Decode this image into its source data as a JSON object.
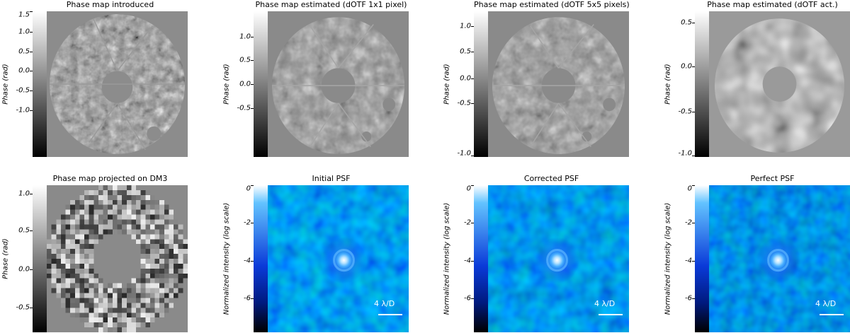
{
  "panels": [
    {
      "title": "Phase map introduced",
      "ylabel": "Phase (rad)",
      "cmap": "gray",
      "ticks": [
        {
          "label": "1.5",
          "frac": 0.0
        },
        {
          "label": "1.0",
          "frac": 0.14
        },
        {
          "label": "0.5",
          "frac": 0.275
        },
        {
          "label": "0.0",
          "frac": 0.41
        },
        {
          "label": "-0.5",
          "frac": 0.545
        },
        {
          "label": "-1.0",
          "frac": 0.68
        }
      ]
    },
    {
      "title": "Phase map estimated (dOTF 1x1 pixel)",
      "ylabel": "Phase (rad)",
      "cmap": "gray",
      "ticks": [
        {
          "label": "1.0",
          "frac": 0.175
        },
        {
          "label": "0.5",
          "frac": 0.335
        },
        {
          "label": "0.0",
          "frac": 0.5
        },
        {
          "label": "-0.5",
          "frac": 0.665
        }
      ]
    },
    {
      "title": "Phase map estimated (dOTF 5x5 pixels)",
      "ylabel": "Phase (rad)",
      "cmap": "gray",
      "ticks": [
        {
          "label": "1.0",
          "frac": 0.1
        },
        {
          "label": "0.5",
          "frac": 0.275
        },
        {
          "label": "0.0",
          "frac": 0.46
        },
        {
          "label": "-0.5",
          "frac": 0.63
        },
        {
          "label": "-1.0",
          "frac": 0.99
        }
      ]
    },
    {
      "title": "Phase map estimated (dOTF act.)",
      "ylabel": "Phase (rad)",
      "cmap": "gray",
      "ticks": [
        {
          "label": "0.5",
          "frac": 0.08
        },
        {
          "label": "0.0",
          "frac": 0.38
        },
        {
          "label": "-0.5",
          "frac": 0.69
        },
        {
          "label": "-1.0",
          "frac": 0.99
        }
      ]
    },
    {
      "title": "Phase map projected on DM3",
      "ylabel": "Phase (rad)",
      "cmap": "gray",
      "ticks": [
        {
          "label": "1.0",
          "frac": 0.06
        },
        {
          "label": "0.5",
          "frac": 0.31
        },
        {
          "label": "0.0",
          "frac": 0.57
        },
        {
          "label": "-0.5",
          "frac": 0.83
        }
      ]
    },
    {
      "title": "Initial PSF",
      "ylabel": "Normalized intensity (log scale)",
      "cmap": "blue",
      "scale": "4 λ/D",
      "ticks": [
        {
          "label": "0",
          "frac": 0.0
        },
        {
          "label": "-2",
          "frac": 0.257
        },
        {
          "label": "-4",
          "frac": 0.514
        },
        {
          "label": "-6",
          "frac": 0.771
        }
      ]
    },
    {
      "title": "Corrected PSF",
      "ylabel": "Normalized intensity (log scale)",
      "cmap": "blue",
      "scale": "4 λ/D",
      "ticks": [
        {
          "label": "0",
          "frac": 0.0
        },
        {
          "label": "-2",
          "frac": 0.257
        },
        {
          "label": "-4",
          "frac": 0.514
        },
        {
          "label": "-6",
          "frac": 0.771
        }
      ]
    },
    {
      "title": "Perfect PSF",
      "ylabel": "Normalized intensity (log scale)",
      "cmap": "blue",
      "scale": "4 λ/D",
      "ticks": [
        {
          "label": "0",
          "frac": 0.0
        },
        {
          "label": "-2",
          "frac": 0.257
        },
        {
          "label": "-4",
          "frac": 0.514
        },
        {
          "label": "-6",
          "frac": 0.771
        }
      ]
    }
  ]
}
